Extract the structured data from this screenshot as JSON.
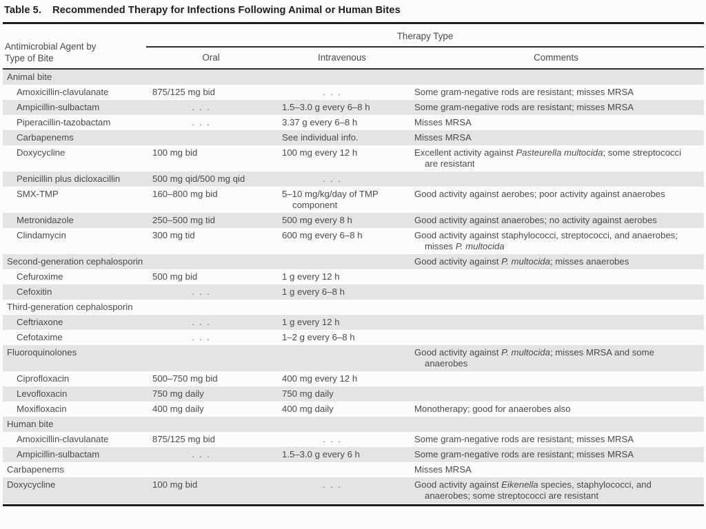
{
  "title": {
    "label": "Table 5.",
    "text": "Recommended Therapy for Infections Following Animal or Human Bites"
  },
  "header": {
    "group": "Therapy Type",
    "col_agent_line1": "Antimicrobial Agent by",
    "col_agent_line2": "Type of Bite",
    "col_oral": "Oral",
    "col_iv": "Intravenous",
    "col_comments": "Comments"
  },
  "ellipsis": ". . .",
  "stripe_color": "#e4e4e4",
  "rows": [
    {
      "agent": "Animal bite",
      "section": true,
      "oral": "",
      "iv": "",
      "comments": []
    },
    {
      "agent": "Amoxicillin-clavulanate",
      "indent": true,
      "oral": "875/125 mg bid",
      "iv": ". . .",
      "comments": [
        "Some gram-negative rods are resistant; misses MRSA"
      ]
    },
    {
      "agent": "Ampicillin-sulbactam",
      "indent": true,
      "oral": ". . .",
      "iv": "1.5–3.0 g every 6–8 h",
      "comments": [
        "Some gram-negative rods are resistant; misses MRSA"
      ]
    },
    {
      "agent": "Piperacillin-tazobactam",
      "indent": true,
      "oral": ". . .",
      "iv": "3.37 g every 6–8 h",
      "comments": [
        "Misses MRSA"
      ]
    },
    {
      "agent": "Carbapenems",
      "indent": true,
      "oral": "",
      "iv": "See individual info.",
      "comments": [
        "Misses MRSA"
      ]
    },
    {
      "agent": "Doxycycline",
      "indent": true,
      "oral": "100 mg bid",
      "iv": "100 mg every 12 h",
      "comments": [
        "Excellent activity against ",
        {
          "i": "Pasteurella multocida"
        },
        "; some streptococci are resistant"
      ]
    },
    {
      "agent": "Penicillin plus dicloxacillin",
      "indent": true,
      "oral": "500 mg qid/500 mg qid",
      "iv": ". . .",
      "comments": []
    },
    {
      "agent": "SMX-TMP",
      "indent": true,
      "oral": "160–800 mg bid",
      "iv": "5–10 mg/kg/day of TMP component",
      "comments": [
        "Good activity against aerobes; poor activity against anaerobes"
      ]
    },
    {
      "agent": "Metronidazole",
      "indent": true,
      "oral": "250–500 mg tid",
      "iv": "500 mg every 8 h",
      "comments": [
        "Good activity against anaerobes; no activity against aerobes"
      ]
    },
    {
      "agent": "Clindamycin",
      "indent": true,
      "oral": "300 mg tid",
      "iv": "600 mg every 6–8 h",
      "comments": [
        "Good activity against staphylococci, streptococci, and anaerobes; misses ",
        {
          "i": "P. multocida"
        }
      ]
    },
    {
      "agent": "Second-generation cephalosporin",
      "section": true,
      "oral": "",
      "iv": "",
      "comments": [
        "Good activity against ",
        {
          "i": "P. multocida"
        },
        "; misses anaerobes"
      ]
    },
    {
      "agent": "Cefuroxime",
      "indent": true,
      "oral": "500 mg bid",
      "iv": "1 g every 12 h",
      "comments": []
    },
    {
      "agent": "Cefoxitin",
      "indent": true,
      "oral": ". . .",
      "iv": "1 g every 6–8 h",
      "comments": []
    },
    {
      "agent": "Third-generation cephalosporin",
      "section": true,
      "oral": "",
      "iv": "",
      "comments": []
    },
    {
      "agent": "Ceftriaxone",
      "indent": true,
      "oral": ". . .",
      "iv": "1 g every 12 h",
      "comments": []
    },
    {
      "agent": "Cefotaxime",
      "indent": true,
      "oral": ". . .",
      "iv": "1–2 g every 6–8 h",
      "comments": []
    },
    {
      "agent": "Fluoroquinolones",
      "section": true,
      "oral": "",
      "iv": "",
      "comments": [
        "Good activity against ",
        {
          "i": "P. multocida"
        },
        "; misses MRSA and some anaerobes"
      ]
    },
    {
      "agent": "Ciprofloxacin",
      "indent": true,
      "oral": "500–750 mg bid",
      "iv": "400 mg every 12 h",
      "comments": []
    },
    {
      "agent": "Levofloxacin",
      "indent": true,
      "oral": "750 mg daily",
      "iv": "750 mg daily",
      "comments": []
    },
    {
      "agent": "Moxifloxacin",
      "indent": true,
      "oral": "400 mg daily",
      "iv": "400 mg daily",
      "comments": [
        "Monotherapy; good for anaerobes also"
      ]
    },
    {
      "agent": "Human bite",
      "section": true,
      "oral": "",
      "iv": "",
      "comments": []
    },
    {
      "agent": "Amoxicillin-clavulanate",
      "indent": true,
      "oral": "875/125 mg bid",
      "iv": ". . .",
      "comments": [
        "Some gram-negative rods are resistant; misses MRSA"
      ]
    },
    {
      "agent": "Ampicillin-sulbactam",
      "indent": true,
      "oral": ". . .",
      "iv": "1.5–3.0 g every 6 h",
      "comments": [
        "Some gram-negative rods are resistant; misses MRSA"
      ]
    },
    {
      "agent": "Carbapenems",
      "section": true,
      "oral": "",
      "iv": "",
      "comments": [
        "Misses MRSA"
      ]
    },
    {
      "agent": "Doxycycline",
      "section": true,
      "oral": "100 mg bid",
      "iv": ". . .",
      "comments": [
        "Good activity against ",
        {
          "i": "Eikenella"
        },
        " species, staphylococci, and anaerobes; some streptococci are resistant"
      ]
    }
  ]
}
